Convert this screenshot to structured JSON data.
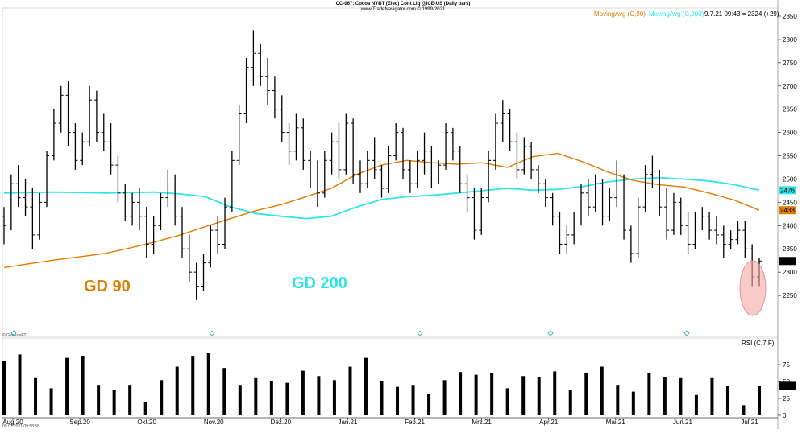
{
  "chart_data": {
    "type": "ohlc",
    "title": "CC-067: Cocoa NYBT (Elec) Cont Liq @ICE-US  (Daily bars)",
    "subtitle": "www.TradeNavigator.com © 1999-2021",
    "copyright": "© GenesisFT",
    "timestamp": "09.07.2021 09:58:58",
    "legend": [
      {
        "label": "MovingAvg (C,90)",
        "color": "#e07b00"
      },
      {
        "label": "MovingAvg (C,200)",
        "color": "#2ee6e6"
      }
    ],
    "last_quote": "9.7.21 09:43 = 2324 (+29)",
    "annotations": {
      "gd90": "GD 90",
      "gd200": "GD 200"
    },
    "price_axis": {
      "min": 2200,
      "max": 2850,
      "ticks": [
        2250,
        2300,
        2350,
        2400,
        2450,
        2500,
        2550,
        2600,
        2650,
        2700,
        2750,
        2800,
        2850
      ]
    },
    "price_markers": [
      {
        "value": 2476,
        "label": "2476",
        "color": "#2ee6e6"
      },
      {
        "value": 2433,
        "label": "2433",
        "color": "#e07b00"
      },
      {
        "value": 2324,
        "label": "2324",
        "color": "#000000"
      }
    ],
    "months": [
      "Aug.20",
      "Sep.20",
      "Okt.20",
      "Nov.20",
      "Dez.20",
      "Jan.21",
      "Feb.21",
      "Mrz.21",
      "Apr.21",
      "Mai.21",
      "Jun.21",
      "Jul.21"
    ],
    "ma90": [
      2310,
      2318,
      2326,
      2333,
      2340,
      2352,
      2365,
      2380,
      2398,
      2415,
      2432,
      2445,
      2462,
      2480,
      2510,
      2530,
      2540,
      2535,
      2532,
      2535,
      2525,
      2548,
      2555,
      2537,
      2515,
      2497,
      2488,
      2483,
      2470,
      2455,
      2433
    ],
    "ma200": [
      2470,
      2471,
      2472,
      2471,
      2470,
      2471,
      2472,
      2468,
      2462,
      2440,
      2426,
      2420,
      2415,
      2420,
      2440,
      2456,
      2462,
      2465,
      2470,
      2475,
      2480,
      2476,
      2478,
      2484,
      2494,
      2500,
      2503,
      2500,
      2496,
      2488,
      2476
    ],
    "rsi": {
      "label": "RSI (C,7,F)",
      "axis_ticks": [
        0,
        25,
        50,
        75
      ],
      "current": "43.57",
      "values": [
        80,
        90,
        55,
        40,
        85,
        88,
        45,
        38,
        45,
        20,
        52,
        72,
        88,
        92,
        70,
        45,
        55,
        50,
        48,
        66,
        58,
        52,
        72,
        85,
        50,
        42,
        45,
        32,
        52,
        64,
        60,
        62,
        40,
        58,
        56,
        65,
        38,
        62,
        72,
        45,
        35,
        62,
        57,
        55,
        30,
        55,
        44,
        15,
        43.57
      ]
    },
    "bars": [
      {
        "o": 2420,
        "h": 2440,
        "l": 2360,
        "c": 2400
      },
      {
        "o": 2410,
        "h": 2510,
        "l": 2390,
        "c": 2490
      },
      {
        "o": 2490,
        "h": 2530,
        "l": 2440,
        "c": 2460
      },
      {
        "o": 2460,
        "h": 2500,
        "l": 2420,
        "c": 2440
      },
      {
        "o": 2440,
        "h": 2480,
        "l": 2350,
        "c": 2380
      },
      {
        "o": 2380,
        "h": 2470,
        "l": 2370,
        "c": 2450
      },
      {
        "o": 2450,
        "h": 2560,
        "l": 2440,
        "c": 2550
      },
      {
        "o": 2550,
        "h": 2650,
        "l": 2540,
        "c": 2620
      },
      {
        "o": 2620,
        "h": 2700,
        "l": 2600,
        "c": 2680
      },
      {
        "o": 2680,
        "h": 2710,
        "l": 2570,
        "c": 2600
      },
      {
        "o": 2600,
        "h": 2620,
        "l": 2520,
        "c": 2540
      },
      {
        "o": 2540,
        "h": 2600,
        "l": 2530,
        "c": 2580
      },
      {
        "o": 2580,
        "h": 2700,
        "l": 2570,
        "c": 2670
      },
      {
        "o": 2670,
        "h": 2690,
        "l": 2580,
        "c": 2600
      },
      {
        "o": 2600,
        "h": 2640,
        "l": 2560,
        "c": 2580
      },
      {
        "o": 2580,
        "h": 2620,
        "l": 2510,
        "c": 2530
      },
      {
        "o": 2530,
        "h": 2550,
        "l": 2450,
        "c": 2470
      },
      {
        "o": 2470,
        "h": 2490,
        "l": 2410,
        "c": 2420
      },
      {
        "o": 2420,
        "h": 2470,
        "l": 2400,
        "c": 2450
      },
      {
        "o": 2450,
        "h": 2480,
        "l": 2390,
        "c": 2420
      },
      {
        "o": 2420,
        "h": 2440,
        "l": 2330,
        "c": 2360
      },
      {
        "o": 2360,
        "h": 2420,
        "l": 2340,
        "c": 2400
      },
      {
        "o": 2400,
        "h": 2470,
        "l": 2390,
        "c": 2460
      },
      {
        "o": 2460,
        "h": 2520,
        "l": 2440,
        "c": 2500
      },
      {
        "o": 2500,
        "h": 2510,
        "l": 2400,
        "c": 2420
      },
      {
        "o": 2420,
        "h": 2440,
        "l": 2330,
        "c": 2350
      },
      {
        "o": 2350,
        "h": 2380,
        "l": 2280,
        "c": 2300
      },
      {
        "o": 2300,
        "h": 2320,
        "l": 2240,
        "c": 2270
      },
      {
        "o": 2270,
        "h": 2340,
        "l": 2260,
        "c": 2320
      },
      {
        "o": 2320,
        "h": 2400,
        "l": 2310,
        "c": 2390
      },
      {
        "o": 2390,
        "h": 2420,
        "l": 2340,
        "c": 2360
      },
      {
        "o": 2360,
        "h": 2460,
        "l": 2350,
        "c": 2440
      },
      {
        "o": 2440,
        "h": 2560,
        "l": 2430,
        "c": 2540
      },
      {
        "o": 2540,
        "h": 2660,
        "l": 2530,
        "c": 2640
      },
      {
        "o": 2640,
        "h": 2760,
        "l": 2620,
        "c": 2740
      },
      {
        "o": 2740,
        "h": 2820,
        "l": 2700,
        "c": 2770
      },
      {
        "o": 2770,
        "h": 2790,
        "l": 2700,
        "c": 2720
      },
      {
        "o": 2720,
        "h": 2760,
        "l": 2660,
        "c": 2690
      },
      {
        "o": 2690,
        "h": 2720,
        "l": 2630,
        "c": 2650
      },
      {
        "o": 2650,
        "h": 2680,
        "l": 2580,
        "c": 2600
      },
      {
        "o": 2600,
        "h": 2620,
        "l": 2530,
        "c": 2560
      },
      {
        "o": 2560,
        "h": 2640,
        "l": 2540,
        "c": 2610
      },
      {
        "o": 2610,
        "h": 2630,
        "l": 2520,
        "c": 2540
      },
      {
        "o": 2540,
        "h": 2560,
        "l": 2480,
        "c": 2500
      },
      {
        "o": 2500,
        "h": 2540,
        "l": 2440,
        "c": 2470
      },
      {
        "o": 2470,
        "h": 2560,
        "l": 2460,
        "c": 2540
      },
      {
        "o": 2540,
        "h": 2600,
        "l": 2510,
        "c": 2580
      },
      {
        "o": 2580,
        "h": 2620,
        "l": 2500,
        "c": 2520
      },
      {
        "o": 2520,
        "h": 2640,
        "l": 2510,
        "c": 2620
      },
      {
        "o": 2620,
        "h": 2630,
        "l": 2490,
        "c": 2510
      },
      {
        "o": 2510,
        "h": 2540,
        "l": 2470,
        "c": 2490
      },
      {
        "o": 2490,
        "h": 2560,
        "l": 2480,
        "c": 2540
      },
      {
        "o": 2540,
        "h": 2590,
        "l": 2500,
        "c": 2520
      },
      {
        "o": 2520,
        "h": 2530,
        "l": 2460,
        "c": 2480
      },
      {
        "o": 2480,
        "h": 2570,
        "l": 2470,
        "c": 2550
      },
      {
        "o": 2550,
        "h": 2620,
        "l": 2540,
        "c": 2600
      },
      {
        "o": 2600,
        "h": 2610,
        "l": 2500,
        "c": 2520
      },
      {
        "o": 2520,
        "h": 2540,
        "l": 2470,
        "c": 2490
      },
      {
        "o": 2490,
        "h": 2560,
        "l": 2480,
        "c": 2540
      },
      {
        "o": 2540,
        "h": 2600,
        "l": 2510,
        "c": 2560
      },
      {
        "o": 2560,
        "h": 2570,
        "l": 2480,
        "c": 2500
      },
      {
        "o": 2500,
        "h": 2540,
        "l": 2490,
        "c": 2530
      },
      {
        "o": 2530,
        "h": 2620,
        "l": 2520,
        "c": 2600
      },
      {
        "o": 2600,
        "h": 2610,
        "l": 2540,
        "c": 2560
      },
      {
        "o": 2560,
        "h": 2570,
        "l": 2470,
        "c": 2490
      },
      {
        "o": 2490,
        "h": 2510,
        "l": 2430,
        "c": 2460
      },
      {
        "o": 2460,
        "h": 2480,
        "l": 2370,
        "c": 2390
      },
      {
        "o": 2390,
        "h": 2480,
        "l": 2380,
        "c": 2460
      },
      {
        "o": 2460,
        "h": 2560,
        "l": 2450,
        "c": 2540
      },
      {
        "o": 2540,
        "h": 2640,
        "l": 2520,
        "c": 2620
      },
      {
        "o": 2620,
        "h": 2670,
        "l": 2580,
        "c": 2640
      },
      {
        "o": 2640,
        "h": 2650,
        "l": 2560,
        "c": 2580
      },
      {
        "o": 2580,
        "h": 2600,
        "l": 2500,
        "c": 2520
      },
      {
        "o": 2520,
        "h": 2590,
        "l": 2510,
        "c": 2570
      },
      {
        "o": 2570,
        "h": 2580,
        "l": 2500,
        "c": 2520
      },
      {
        "o": 2520,
        "h": 2530,
        "l": 2470,
        "c": 2490
      },
      {
        "o": 2490,
        "h": 2500,
        "l": 2440,
        "c": 2460
      },
      {
        "o": 2460,
        "h": 2470,
        "l": 2400,
        "c": 2420
      },
      {
        "o": 2420,
        "h": 2430,
        "l": 2340,
        "c": 2360
      },
      {
        "o": 2360,
        "h": 2400,
        "l": 2340,
        "c": 2380
      },
      {
        "o": 2380,
        "h": 2430,
        "l": 2360,
        "c": 2410
      },
      {
        "o": 2410,
        "h": 2490,
        "l": 2400,
        "c": 2470
      },
      {
        "o": 2470,
        "h": 2500,
        "l": 2420,
        "c": 2440
      },
      {
        "o": 2440,
        "h": 2510,
        "l": 2430,
        "c": 2490
      },
      {
        "o": 2490,
        "h": 2500,
        "l": 2400,
        "c": 2420
      },
      {
        "o": 2420,
        "h": 2480,
        "l": 2410,
        "c": 2460
      },
      {
        "o": 2460,
        "h": 2540,
        "l": 2440,
        "c": 2500
      },
      {
        "o": 2500,
        "h": 2510,
        "l": 2370,
        "c": 2390
      },
      {
        "o": 2390,
        "h": 2400,
        "l": 2320,
        "c": 2340
      },
      {
        "o": 2340,
        "h": 2460,
        "l": 2330,
        "c": 2440
      },
      {
        "o": 2440,
        "h": 2530,
        "l": 2430,
        "c": 2510
      },
      {
        "o": 2510,
        "h": 2550,
        "l": 2480,
        "c": 2500
      },
      {
        "o": 2500,
        "h": 2520,
        "l": 2420,
        "c": 2440
      },
      {
        "o": 2440,
        "h": 2480,
        "l": 2370,
        "c": 2390
      },
      {
        "o": 2390,
        "h": 2470,
        "l": 2380,
        "c": 2450
      },
      {
        "o": 2450,
        "h": 2460,
        "l": 2380,
        "c": 2400
      },
      {
        "o": 2400,
        "h": 2430,
        "l": 2340,
        "c": 2360
      },
      {
        "o": 2360,
        "h": 2430,
        "l": 2350,
        "c": 2410
      },
      {
        "o": 2410,
        "h": 2440,
        "l": 2390,
        "c": 2420
      },
      {
        "o": 2420,
        "h": 2430,
        "l": 2370,
        "c": 2390
      },
      {
        "o": 2390,
        "h": 2420,
        "l": 2360,
        "c": 2380
      },
      {
        "o": 2380,
        "h": 2400,
        "l": 2330,
        "c": 2360
      },
      {
        "o": 2360,
        "h": 2390,
        "l": 2350,
        "c": 2370
      },
      {
        "o": 2370,
        "h": 2410,
        "l": 2360,
        "c": 2390
      },
      {
        "o": 2390,
        "h": 2410,
        "l": 2330,
        "c": 2350
      },
      {
        "o": 2350,
        "h": 2360,
        "l": 2270,
        "c": 2290
      },
      {
        "o": 2290,
        "h": 2330,
        "l": 2270,
        "c": 2324
      }
    ]
  }
}
